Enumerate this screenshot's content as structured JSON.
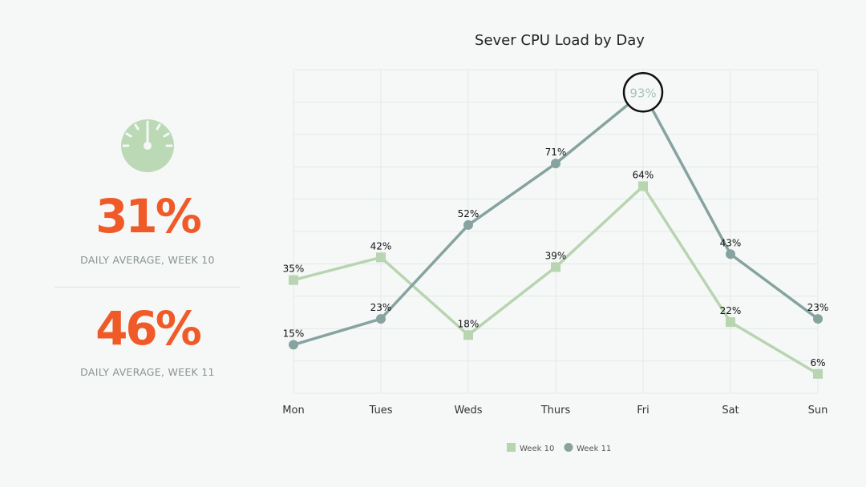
{
  "kpis": [
    {
      "value": "31%",
      "caption": "DAILY AVERAGE, WEEK 10"
    },
    {
      "value": "46%",
      "caption": "DAILY AVERAGE, WEEK 11"
    }
  ],
  "icons": {
    "gauge": "speedometer-icon"
  },
  "colors": {
    "accent": "#f05a28",
    "week10": "#b8d4b0",
    "week11": "#86a3a0",
    "icon": "#bcd9b6"
  },
  "chart_data": {
    "type": "line",
    "title": "Sever CPU Load by Day",
    "categories": [
      "Mon",
      "Tues",
      "Weds",
      "Thurs",
      "Fri",
      "Sat",
      "Sun"
    ],
    "series": [
      {
        "name": "Week 10",
        "marker": "square",
        "values": [
          35,
          42,
          18,
          39,
          64,
          22,
          6
        ],
        "labels": [
          "35%",
          "42%",
          "18%",
          "39%",
          "64%",
          "22%",
          "6%"
        ]
      },
      {
        "name": "Week 11",
        "marker": "circle",
        "values": [
          15,
          23,
          52,
          71,
          93,
          43,
          23
        ],
        "labels": [
          "15%",
          "23%",
          "52%",
          "71%",
          "93%",
          "43%",
          "23%"
        ]
      }
    ],
    "highlight": {
      "series": "Week 11",
      "category": "Fri"
    },
    "ylim": [
      0,
      100
    ],
    "grid": true,
    "legend": "bottom"
  }
}
